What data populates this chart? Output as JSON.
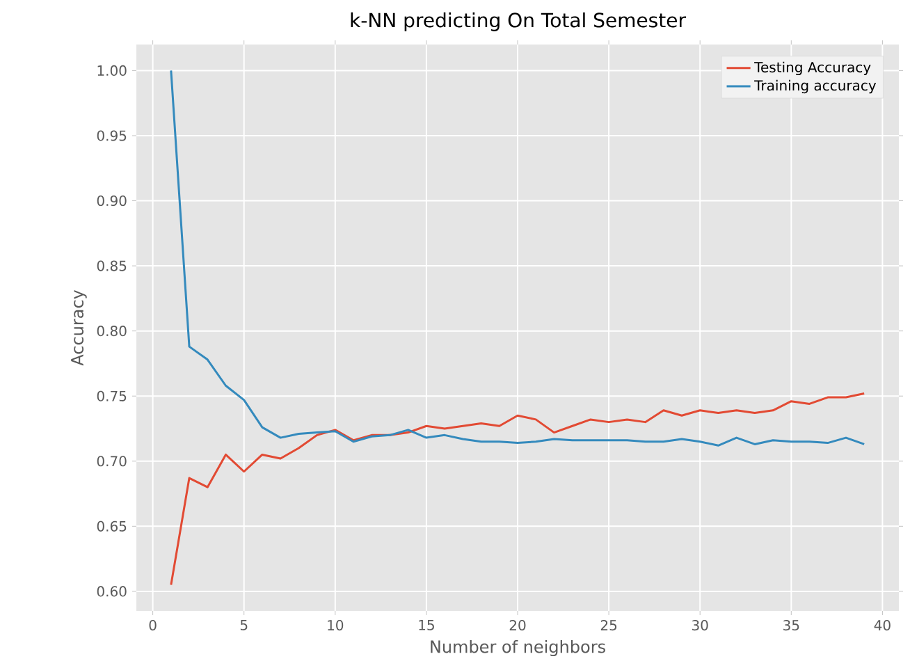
{
  "chart_data": {
    "type": "line",
    "title": "k-NN predicting On Total Semester",
    "xlabel": "Number of neighbors",
    "ylabel": "Accuracy",
    "x": [
      1,
      2,
      3,
      4,
      5,
      6,
      7,
      8,
      9,
      10,
      11,
      12,
      13,
      14,
      15,
      16,
      17,
      18,
      19,
      20,
      21,
      22,
      23,
      24,
      25,
      26,
      27,
      28,
      29,
      30,
      31,
      32,
      33,
      34,
      35,
      36,
      37,
      38,
      39
    ],
    "series": [
      {
        "name": "Testing Accuracy",
        "color": "#e24a33",
        "values": [
          0.605,
          0.687,
          0.68,
          0.705,
          0.692,
          0.705,
          0.702,
          0.71,
          0.72,
          0.724,
          0.716,
          0.72,
          0.72,
          0.722,
          0.727,
          0.725,
          0.727,
          0.729,
          0.727,
          0.735,
          0.732,
          0.722,
          0.727,
          0.732,
          0.73,
          0.732,
          0.73,
          0.739,
          0.735,
          0.739,
          0.737,
          0.739,
          0.737,
          0.739,
          0.746,
          0.744,
          0.749,
          0.749,
          0.752
        ]
      },
      {
        "name": "Training accuracy",
        "color": "#348abd",
        "values": [
          1.0,
          0.788,
          0.778,
          0.758,
          0.747,
          0.726,
          0.718,
          0.721,
          0.722,
          0.723,
          0.715,
          0.719,
          0.72,
          0.724,
          0.718,
          0.72,
          0.717,
          0.715,
          0.715,
          0.714,
          0.715,
          0.717,
          0.716,
          0.716,
          0.716,
          0.716,
          0.715,
          0.715,
          0.717,
          0.715,
          0.712,
          0.718,
          0.713,
          0.716,
          0.715,
          0.715,
          0.714,
          0.718,
          0.713
        ]
      }
    ],
    "xlim": [
      -0.9,
      40.9
    ],
    "ylim": [
      0.585,
      1.02
    ],
    "xticks": [
      0,
      5,
      10,
      15,
      20,
      25,
      30,
      35,
      40
    ],
    "yticks": [
      {
        "value": 0.6,
        "label": "0.60"
      },
      {
        "value": 0.65,
        "label": "0.65"
      },
      {
        "value": 0.7,
        "label": "0.70"
      },
      {
        "value": 0.75,
        "label": "0.75"
      },
      {
        "value": 0.8,
        "label": "0.80"
      },
      {
        "value": 0.85,
        "label": "0.85"
      },
      {
        "value": 0.9,
        "label": "0.90"
      },
      {
        "value": 0.95,
        "label": "0.95"
      },
      {
        "value": 1.0,
        "label": "1.00"
      }
    ],
    "grid": true,
    "legend": "top right",
    "marker": "none",
    "line_style": "solid"
  }
}
